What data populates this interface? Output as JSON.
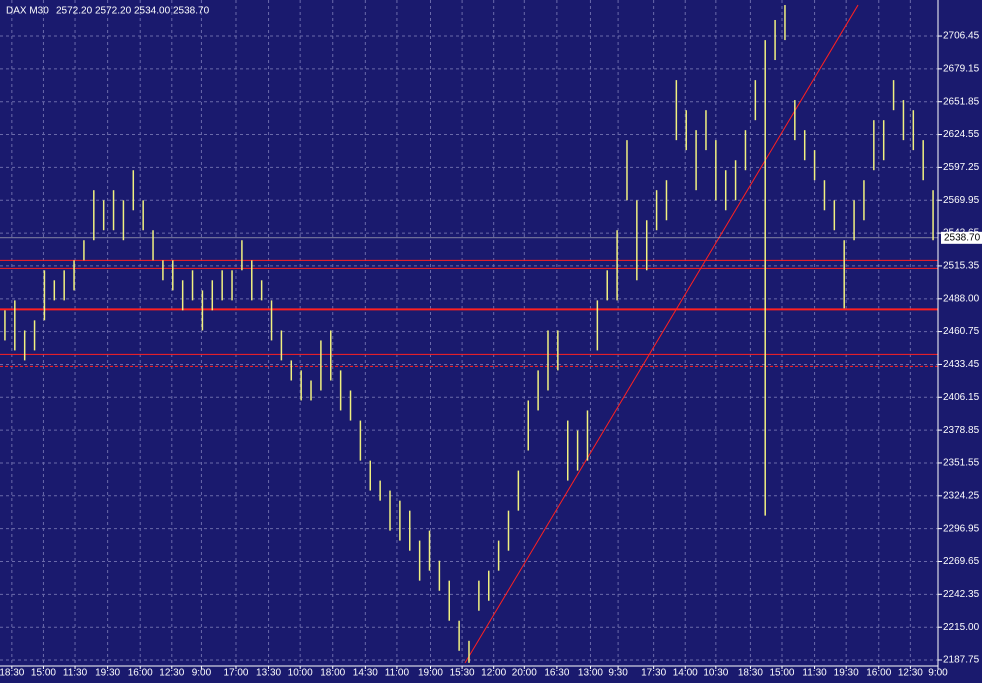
{
  "chart_data": {
    "type": "hilo",
    "title": "DAX M30",
    "header_prices": [
      "2572.20",
      "2572.20",
      "2534.00",
      "2538.70"
    ],
    "last_price": {
      "value": 2538.7,
      "label": "2538.70"
    },
    "color": "#f0f080",
    "background": "#1a1a6e",
    "grid": true,
    "x": [
      0,
      1,
      2,
      3,
      4,
      5,
      6,
      7,
      8,
      9,
      10,
      11,
      12,
      13,
      14,
      15,
      16,
      17,
      18,
      19,
      20,
      21,
      22,
      23,
      24,
      25,
      26,
      27,
      28,
      29,
      30,
      31,
      32,
      33,
      34,
      35,
      36,
      37,
      38,
      39,
      40,
      41,
      42,
      43,
      44,
      45,
      46,
      47,
      48,
      49,
      50,
      51,
      52,
      53,
      54,
      55,
      56,
      57,
      58,
      59,
      60,
      61,
      62,
      63,
      64,
      65,
      66,
      67,
      68,
      69,
      70,
      71,
      72,
      73,
      74,
      75,
      76,
      77,
      78,
      79,
      80,
      81,
      82,
      83,
      84,
      85,
      86,
      87,
      88,
      89,
      90,
      91,
      92,
      93,
      94
    ],
    "high": [
      2478.4,
      2486.7,
      2461.7,
      2470.1,
      2511.7,
      2503.4,
      2511.7,
      2520.0,
      2536.7,
      2578.3,
      2569.9,
      2578.3,
      2569.9,
      2594.9,
      2569.9,
      2545.0,
      2520.0,
      2520.0,
      2503.4,
      2511.7,
      2495.0,
      2503.4,
      2511.7,
      2511.7,
      2536.7,
      2520.0,
      2503.4,
      2486.7,
      2461.7,
      2436.8,
      2428.5,
      2420.1,
      2453.4,
      2461.7,
      2428.5,
      2411.8,
      2386.8,
      2353.5,
      2336.9,
      2328.6,
      2320.2,
      2311.9,
      2287.0,
      2295.3,
      2270.3,
      2253.7,
      2220.4,
      2203.7,
      2253.7,
      2262.0,
      2287.0,
      2311.9,
      2345.2,
      2403.5,
      2428.5,
      2461.7,
      2461.7,
      2386.8,
      2378.5,
      2395.2,
      2486.7,
      2511.7,
      2545.0,
      2619.9,
      2569.9,
      2553.3,
      2578.3,
      2586.6,
      2669.8,
      2644.8,
      2628.2,
      2644.8,
      2619.9,
      2594.9,
      2603.2,
      2628.2,
      2669.8,
      2703.1,
      2719.8,
      2732.2,
      2653.2,
      2628.2,
      2611.6,
      2586.6,
      2569.9,
      2536.7,
      2569.9,
      2586.6,
      2636.5,
      2636.5,
      2669.8,
      2653.2,
      2644.8,
      2619.9,
      2578.3
    ],
    "low": [
      2453.4,
      2445.1,
      2436.8,
      2445.1,
      2470.1,
      2486.7,
      2486.7,
      2495.0,
      2520.0,
      2536.7,
      2545.0,
      2545.0,
      2536.7,
      2561.6,
      2545.0,
      2520.0,
      2503.4,
      2495.0,
      2478.4,
      2486.7,
      2461.7,
      2478.4,
      2486.7,
      2486.7,
      2511.7,
      2486.7,
      2486.7,
      2453.4,
      2436.8,
      2420.1,
      2403.5,
      2403.5,
      2411.8,
      2420.1,
      2395.2,
      2386.8,
      2353.5,
      2328.6,
      2320.2,
      2295.3,
      2287.0,
      2278.6,
      2253.7,
      2262.0,
      2245.3,
      2220.4,
      2195.4,
      2185.4,
      2228.7,
      2237.0,
      2262.0,
      2278.6,
      2311.9,
      2361.9,
      2395.2,
      2411.8,
      2428.5,
      2336.9,
      2345.2,
      2353.5,
      2445.1,
      2486.7,
      2486.7,
      2569.9,
      2503.4,
      2511.7,
      2545.0,
      2553.3,
      2619.9,
      2611.6,
      2578.3,
      2611.6,
      2569.9,
      2561.6,
      2569.9,
      2594.9,
      2636.5,
      2307.8,
      2686.5,
      2703.1,
      2619.9,
      2603.2,
      2586.6,
      2561.6,
      2545.0,
      2480.1,
      2536.7,
      2553.3,
      2594.9,
      2603.2,
      2644.8,
      2619.9,
      2611.6,
      2586.6,
      2536.7
    ],
    "xlim": [
      -0.5,
      94.5
    ],
    "ylim": [
      2182.76,
      2736.41
    ],
    "yticks": [
      2187.75,
      {
        "value": 2215.0,
        "label": "2215.00"
      },
      2242.35,
      2269.65,
      2296.95,
      2324.25,
      2351.55,
      2378.85,
      2406.15,
      2433.45,
      2460.75,
      {
        "value": 2488.0,
        "label": "2488.00"
      },
      2515.35,
      2542.65,
      2569.95,
      2597.25,
      2624.55,
      2651.85,
      2679.15,
      2706.45
    ],
    "xticks": [
      {
        "value": 0.7,
        "label": "18:30"
      },
      {
        "value": 3.9,
        "label": "15:00"
      },
      {
        "value": 7.1,
        "label": "11:30"
      },
      {
        "value": 10.4,
        "label": "19:30"
      },
      {
        "value": 13.7,
        "label": "16:00"
      },
      {
        "value": 16.9,
        "label": "12:30"
      },
      {
        "value": 19.9,
        "label": "9:00"
      },
      {
        "value": 23.4,
        "label": "17:00"
      },
      {
        "value": 26.7,
        "label": "13:30"
      },
      {
        "value": 29.9,
        "label": "10:00"
      },
      {
        "value": 33.2,
        "label": "18:00"
      },
      {
        "value": 36.5,
        "label": "14:30"
      },
      {
        "value": 39.7,
        "label": "11:00"
      },
      {
        "value": 43.1,
        "label": "19:00"
      },
      {
        "value": 46.3,
        "label": "15:30"
      },
      {
        "value": 49.5,
        "label": "12:00"
      },
      {
        "value": 52.6,
        "label": "20:00"
      },
      {
        "value": 55.9,
        "label": "16:30"
      },
      {
        "value": 59.3,
        "label": "13:00"
      },
      {
        "value": 62.1,
        "label": "9:30"
      },
      {
        "value": 65.7,
        "label": "17:30"
      },
      {
        "value": 68.9,
        "label": "14:00"
      },
      {
        "value": 72.0,
        "label": "10:30"
      },
      {
        "value": 75.5,
        "label": "18:30"
      },
      {
        "value": 78.7,
        "label": "15:00"
      },
      {
        "value": 82.0,
        "label": "11:30"
      },
      {
        "value": 85.2,
        "label": "19:30"
      },
      {
        "value": 88.5,
        "label": "16:00"
      },
      {
        "value": 91.7,
        "label": "12:30"
      },
      {
        "value": 94.5,
        "label": "9:00"
      }
    ],
    "hlines": [
      {
        "value": 2520.0,
        "color": "#ff2020",
        "width": 1,
        "dashed": false
      },
      {
        "value": 2513.35,
        "color": "#ff2020",
        "width": 1,
        "dashed": false
      },
      {
        "value": 2479.2,
        "color": "#ff2020",
        "width": 2,
        "dashed": false
      },
      {
        "value": 2441.8,
        "color": "#ff2020",
        "width": 1,
        "dashed": false
      },
      {
        "value": 2431.8,
        "color": "#ff2020",
        "width": 1,
        "dashed": true
      }
    ],
    "trendline": {
      "x": [
        46.6,
        86.4
      ],
      "y": [
        2185.4,
        2732.2
      ],
      "color": "#ff2020"
    }
  }
}
